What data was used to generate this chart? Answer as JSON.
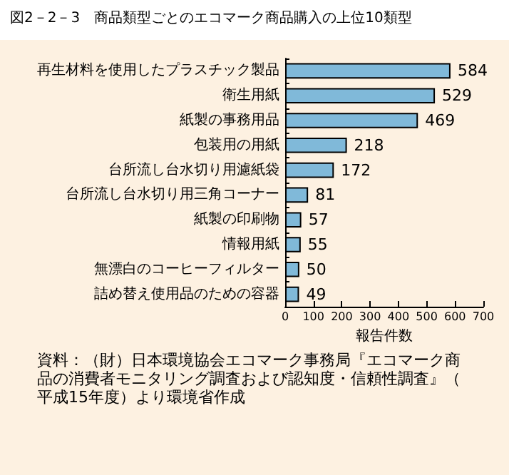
{
  "chart_data": {
    "type": "bar",
    "orientation": "horizontal",
    "title": "図2－2－3　商品類型ごとのエコマーク商品購入の上位10類型",
    "categories": [
      "再生材料を使用したプラスチック製品",
      "衛生用紙",
      "紙製の事務用品",
      "包装用の用紙",
      "台所流し台水切り用濾紙袋",
      "台所流し台水切り用三角コーナー",
      "紙製の印刷物",
      "情報用紙",
      "無漂白のコーヒーフィルター",
      "詰め替え使用品のための容器"
    ],
    "values": [
      584,
      529,
      469,
      218,
      172,
      81,
      57,
      55,
      50,
      49
    ],
    "color": "#80b9d9",
    "data_labels": true,
    "xlabel": "報告件数",
    "xlim": [
      0,
      700
    ],
    "xticks": [
      0,
      100,
      200,
      300,
      400,
      500,
      600,
      700
    ],
    "grid": false,
    "annotations": [
      "資料：（財）日本環境協会エコマーク事務局『エコマーク商品の消費者モニタリング調査および認知度・信頼性調査』（平成15年度）より環境省作成"
    ]
  }
}
